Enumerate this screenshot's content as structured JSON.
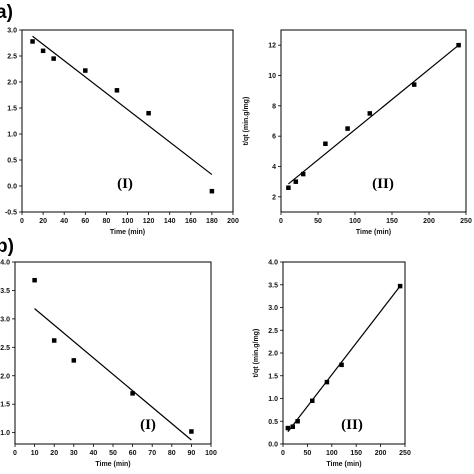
{
  "panel_letters": [
    "a)",
    "b)"
  ],
  "chart_data": [
    {
      "type": "scatter",
      "panel": "a",
      "roman": "(I)",
      "xlabel": "Time (min)",
      "ylabel": "",
      "xlim": [
        0,
        200
      ],
      "ylim": [
        -0.5,
        3.0
      ],
      "xticks": [
        0,
        20,
        40,
        60,
        80,
        100,
        120,
        140,
        160,
        180,
        200
      ],
      "yticks": [
        -0.5,
        0.0,
        0.5,
        1.0,
        1.5,
        2.0,
        2.5,
        3.0
      ],
      "ytick_labels": [
        "-0.5",
        "0.0",
        "0.5",
        "1.0",
        "1.5",
        "2.0",
        "2.5",
        "3.0"
      ],
      "points": [
        [
          10,
          2.78
        ],
        [
          20,
          2.6
        ],
        [
          30,
          2.45
        ],
        [
          60,
          2.22
        ],
        [
          90,
          1.84
        ],
        [
          120,
          1.4
        ],
        [
          180,
          -0.1
        ]
      ],
      "fit_line": [
        [
          10,
          2.88
        ],
        [
          180,
          0.22
        ]
      ]
    },
    {
      "type": "scatter",
      "panel": "a",
      "roman": "(II)",
      "xlabel": "Time (min)",
      "ylabel": "t/qt (min.g/mg)",
      "xlim": [
        0,
        250
      ],
      "ylim": [
        1,
        13
      ],
      "xticks": [
        0,
        50,
        100,
        150,
        200,
        250
      ],
      "yticks": [
        2,
        4,
        6,
        8,
        10,
        12
      ],
      "ytick_labels": [
        "2",
        "4",
        "6",
        "8",
        "10",
        "12"
      ],
      "points": [
        [
          10,
          2.6
        ],
        [
          20,
          3.0
        ],
        [
          30,
          3.5
        ],
        [
          60,
          5.5
        ],
        [
          90,
          6.5
        ],
        [
          120,
          7.5
        ],
        [
          180,
          9.4
        ],
        [
          240,
          12.0
        ]
      ],
      "fit_line": [
        [
          10,
          2.85
        ],
        [
          240,
          12.0
        ]
      ]
    },
    {
      "type": "scatter",
      "panel": "b",
      "roman": "(I)",
      "xlabel": "Time (min)",
      "ylabel": "",
      "xlim": [
        0,
        100
      ],
      "ylim": [
        0.8,
        4.0
      ],
      "xticks": [
        0,
        10,
        20,
        30,
        40,
        50,
        60,
        70,
        80,
        90,
        100
      ],
      "yticks": [
        1.0,
        1.5,
        2.0,
        2.5,
        3.0,
        3.5,
        4.0
      ],
      "ytick_labels": [
        "1.0",
        "1.5",
        "2.0",
        "2.5",
        "3.0",
        "3.5",
        "4.0"
      ],
      "points": [
        [
          10,
          3.68
        ],
        [
          20,
          2.62
        ],
        [
          30,
          2.27
        ],
        [
          60,
          1.69
        ],
        [
          90,
          1.02
        ]
      ],
      "fit_line": [
        [
          10,
          3.18
        ],
        [
          90,
          0.87
        ]
      ]
    },
    {
      "type": "scatter",
      "panel": "b",
      "roman": "(II)",
      "xlabel": "Time (min)",
      "ylabel": "t/qt (min.g/mg)",
      "xlim": [
        0,
        250
      ],
      "ylim": [
        0,
        4.0
      ],
      "xticks": [
        0,
        50,
        100,
        150,
        200,
        250
      ],
      "yticks": [
        0.0,
        0.5,
        1.0,
        1.5,
        2.0,
        2.5,
        3.0,
        3.5,
        4.0
      ],
      "ytick_labels": [
        "0.0",
        "0.5",
        "1.0",
        "1.5",
        "2.0",
        "2.5",
        "3.0",
        "3.5",
        "4.0"
      ],
      "points": [
        [
          10,
          0.35
        ],
        [
          20,
          0.38
        ],
        [
          30,
          0.5
        ],
        [
          60,
          0.95
        ],
        [
          90,
          1.36
        ],
        [
          120,
          1.74
        ],
        [
          240,
          3.47
        ]
      ],
      "fit_line": [
        [
          10,
          0.27
        ],
        [
          240,
          3.47
        ]
      ]
    }
  ]
}
